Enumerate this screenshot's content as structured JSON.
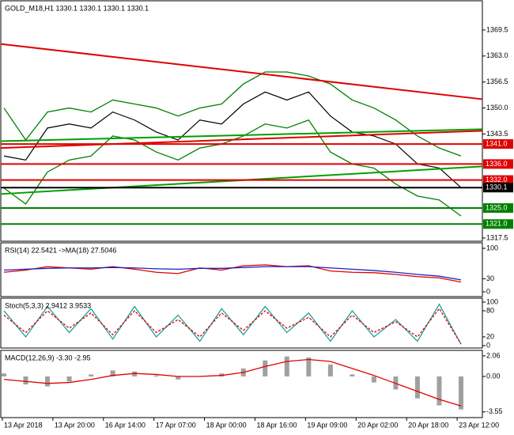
{
  "chart_data": [
    {
      "type": "line",
      "title": "GOLD_M18,H1  1330.1 1330.1 1330.1 1330.1",
      "ylim": [
        1316.7,
        1376.8
      ],
      "yticks": [
        1369.5,
        {
          "value": 1363.0,
          "label": "1363.0"
        },
        1356.5,
        {
          "value": 1350.0,
          "label": "1350.0"
        },
        1343.5,
        1317.5
      ],
      "series": [
        {
          "color": "#000000",
          "values": [
            1338,
            1337,
            1345,
            1346,
            1345,
            1349,
            1347,
            1344,
            1342,
            1347,
            1346,
            1351,
            1354,
            1352,
            1354,
            1348,
            1344,
            1343,
            1341,
            1336,
            1335,
            1330.1
          ]
        },
        {
          "color": "#008000",
          "values": [
            1350,
            1342,
            1349,
            1350,
            1349,
            1352,
            1351,
            1350,
            1348,
            1350,
            1351,
            1356,
            1359,
            1359,
            1358,
            1356,
            1352,
            1350,
            1347,
            1343,
            1340,
            1338
          ]
        },
        {
          "color": "#008000",
          "values": [
            1330,
            1326,
            1334,
            1337,
            1338,
            1343,
            1342,
            1339,
            1337,
            1340,
            1341,
            1343,
            1346,
            1345,
            1347,
            1339,
            1336,
            1335,
            1331,
            1328,
            1327,
            1323
          ]
        }
      ],
      "trend_lines": [
        {
          "color": "#e00000",
          "values": [
            1366,
            1352.2
          ]
        },
        {
          "color": "#e00000",
          "values": [
            1340,
            1344.3
          ]
        },
        {
          "color": "#00a000",
          "values": [
            1341.7,
            1344.7
          ]
        },
        {
          "color": "#00a000",
          "values": [
            1328.5,
            1335.4
          ]
        }
      ],
      "levels": [
        {
          "value": 1341,
          "label": "1341.0",
          "color": "#e00000"
        },
        {
          "value": 1336,
          "label": "1336.0",
          "color": "#e00000"
        },
        {
          "value": 1332,
          "label": "1332.0",
          "color": "#e00000"
        },
        {
          "value": 1330.1,
          "label": "1330.1",
          "color": "#000000"
        },
        {
          "value": 1325,
          "label": "1325.0",
          "color": "#008000"
        },
        {
          "value": 1321,
          "label": "1321.0",
          "color": "#008000"
        }
      ]
    },
    {
      "type": "line",
      "title": "RSI(14) 22.5421  ->MA(18) 27.5046",
      "ylim": [
        -10.9,
        112.7
      ],
      "yticks": [
        100,
        30,
        0
      ],
      "series": [
        {
          "color": "#e00000",
          "values": [
            45,
            50,
            58,
            55,
            52,
            58,
            52,
            45,
            42,
            55,
            50,
            60,
            62,
            58,
            60,
            48,
            45,
            44,
            40,
            35,
            32,
            22.5421
          ]
        },
        {
          "color": "#2020c0",
          "values": [
            50,
            52,
            54,
            55,
            55,
            56,
            55,
            53,
            52,
            54,
            54,
            56,
            58,
            58,
            58,
            55,
            52,
            49,
            45,
            40,
            36,
            27.5046
          ]
        }
      ]
    },
    {
      "type": "line",
      "title": "Stoch(5,3,3) 2.9412 3.9533",
      "ylim": [
        -5.5,
        109
      ],
      "yticks": [
        100,
        80,
        20,
        0
      ],
      "series": [
        {
          "color": "#20a0a0",
          "values": [
            80,
            20,
            90,
            30,
            85,
            15,
            90,
            20,
            70,
            10,
            85,
            25,
            90,
            30,
            75,
            10,
            80,
            20,
            60,
            10,
            95,
            2.9412
          ]
        },
        {
          "color": "#e00000",
          "dash": true,
          "values": [
            70,
            30,
            80,
            40,
            75,
            25,
            80,
            30,
            60,
            20,
            75,
            35,
            80,
            40,
            65,
            20,
            70,
            30,
            55,
            20,
            85,
            3.9533
          ]
        }
      ]
    },
    {
      "type": "bar",
      "title": "MACD(12,26,9) -3.30 -2.95",
      "ylim": [
        -4.12,
        2.61
      ],
      "yticks": [
        2.06,
        {
          "value": 0,
          "label": "0.00"
        },
        -3.55
      ],
      "series": [
        {
          "type": "bar",
          "color": "#a0a0a0",
          "values": [
            0.3,
            -0.8,
            -1.0,
            -0.5,
            0.2,
            0.6,
            0.5,
            0.1,
            -0.3,
            0.0,
            0.3,
            0.8,
            1.6,
            2.0,
            1.9,
            1.2,
            0.2,
            -0.6,
            -1.3,
            -2.2,
            -2.9,
            -3.3
          ]
        },
        {
          "type": "line",
          "color": "#e00000",
          "values": [
            -0.3,
            -0.5,
            -0.7,
            -0.6,
            -0.3,
            0.1,
            0.3,
            0.2,
            0.0,
            0.0,
            0.1,
            0.4,
            1.0,
            1.5,
            1.7,
            1.5,
            0.8,
            0.1,
            -0.7,
            -1.5,
            -2.3,
            -2.95
          ]
        }
      ],
      "xtick_labels": [
        "13 Apr 2018",
        "13 Apr 20:00",
        "16 Apr 14:00",
        "17 Apr 07:00",
        "18 Apr 00:00",
        "18 Apr 16:00",
        "19 Apr 09:00",
        "20 Apr 02:00",
        "20 Apr 18:00",
        "23 Apr 12:00"
      ]
    }
  ]
}
